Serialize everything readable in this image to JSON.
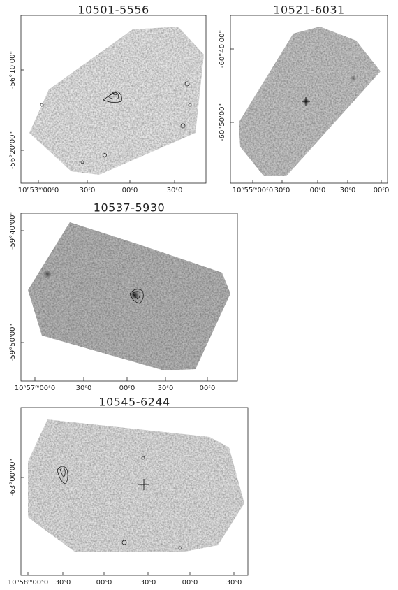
{
  "panels": [
    {
      "title": "10501-5556",
      "y_labels": [
        "-56°10'00\"",
        "-56°20'00\""
      ],
      "x_labels": [
        "10ʰ53ᵐ00ˢ0",
        "30ˢ0",
        "00ˢ0",
        "30ˢ0"
      ]
    },
    {
      "title": "10521-6031",
      "y_labels": [
        "-60°40'00\"",
        "-60°50'00\""
      ],
      "x_labels": [
        "10ʰ55ᵐ00ˢ0",
        "30ˢ0",
        "00ˢ0",
        "30ˢ0",
        "00ˢ0"
      ]
    },
    {
      "title": "10537-5930",
      "y_labels": [
        "-59°40'00\"",
        "-59°50'00\""
      ],
      "x_labels": [
        "10ʰ57ᵐ00ˢ0",
        "30ˢ0",
        "00ˢ0",
        "30ˢ0",
        "00ˢ0"
      ]
    },
    {
      "title": "10545-6244",
      "y_labels": [
        "-63°00'00\""
      ],
      "x_labels": [
        "10ʰ58ᵐ00ˢ0",
        "30ˢ0",
        "00ˢ0",
        "30ˢ0",
        "00ˢ0",
        "30ˢ0"
      ]
    }
  ]
}
